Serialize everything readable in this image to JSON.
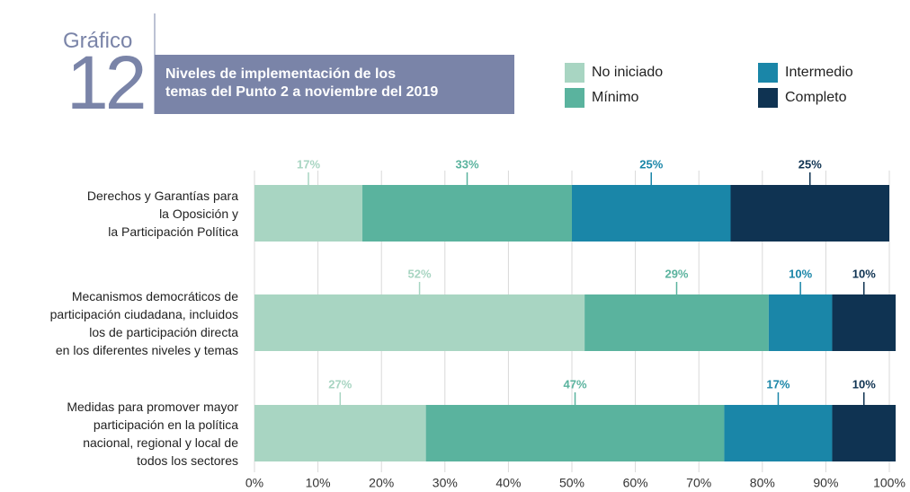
{
  "header": {
    "label": "Gráfico",
    "number": "12",
    "title": "Niveles de implementación de los\ntemas del Punto 2 a noviembre del 2019"
  },
  "chart_data": {
    "type": "stacked-barh",
    "categories": [
      "Derechos y Garantías para\nla Oposición y\nla Participación Política",
      "Mecanismos democráticos de\nparticipación ciudadana, incluidos\nlos de participación directa\nen los diferentes niveles y temas",
      "Medidas para promover mayor\nparticipación en la política\nnacional, regional y local de\ntodos los sectores"
    ],
    "series": [
      {
        "name": "No iniciado",
        "color": "#a8d5c2",
        "values": [
          17,
          52,
          27
        ],
        "value_labels": [
          "17%",
          "52%",
          "27%"
        ]
      },
      {
        "name": "Mínimo",
        "color": "#5ab39e",
        "values": [
          33,
          29,
          47
        ],
        "value_labels": [
          "33%",
          "29%",
          "47%"
        ]
      },
      {
        "name": "Intermedio",
        "color": "#1a86a8",
        "values": [
          25,
          10,
          17
        ],
        "value_labels": [
          "25%",
          "10%",
          "17%"
        ]
      },
      {
        "name": "Completo",
        "color": "#0f3352",
        "values": [
          25,
          10,
          10
        ],
        "value_labels": [
          "25%",
          "10%",
          "10%"
        ]
      }
    ],
    "xlim": [
      0,
      100
    ],
    "xticks": [
      {
        "value": 0,
        "label": "0%"
      },
      {
        "value": 10,
        "label": "10%"
      },
      {
        "value": 20,
        "label": "20%"
      },
      {
        "value": 30,
        "label": "30%"
      },
      {
        "value": 40,
        "label": "40%"
      },
      {
        "value": 50,
        "label": "50%"
      },
      {
        "value": 60,
        "label": "60%"
      },
      {
        "value": 70,
        "label": "70%"
      },
      {
        "value": 80,
        "label": "80%"
      },
      {
        "value": 90,
        "label": "90%"
      },
      {
        "value": 100,
        "label": "100%"
      }
    ],
    "grid": true,
    "legend": "top-right"
  }
}
